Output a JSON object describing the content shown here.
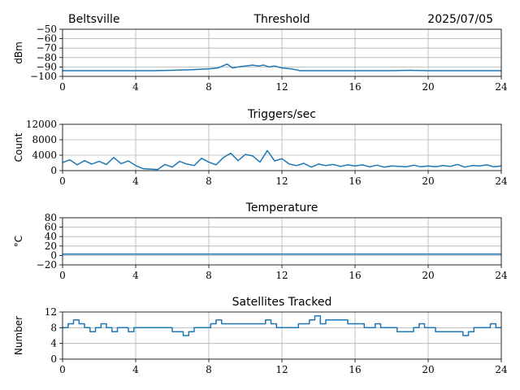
{
  "header": {
    "station": "Beltsville",
    "date": "2025/07/05"
  },
  "chart_data": [
    {
      "type": "line",
      "title": "Threshold",
      "ylabel": "dBm",
      "xlim": [
        0,
        24
      ],
      "ylim": [
        -100,
        -50
      ],
      "xticks": [
        0,
        4,
        8,
        12,
        16,
        20,
        24
      ],
      "yticks": [
        -100,
        -90,
        -80,
        -70,
        -60,
        -50
      ],
      "grid": true,
      "series": [
        {
          "x": [
            0,
            1,
            2,
            3,
            4,
            5,
            6,
            7,
            8,
            8.5,
            9,
            9.3,
            9.6,
            10,
            10.4,
            10.7,
            11,
            11.3,
            11.6,
            12,
            12.5,
            13,
            14,
            16,
            18,
            19,
            20,
            22,
            24
          ],
          "values": [
            -94,
            -94,
            -94,
            -94,
            -94,
            -94,
            -93.5,
            -93,
            -92,
            -91,
            -87,
            -91,
            -90,
            -89,
            -88,
            -89,
            -88,
            -90,
            -89,
            -91,
            -92,
            -94,
            -94,
            -94,
            -94,
            -93.5,
            -94,
            -94,
            -94
          ]
        }
      ]
    },
    {
      "type": "line",
      "title": "Triggers/sec",
      "ylabel": "Count",
      "xlim": [
        0,
        24
      ],
      "ylim": [
        0,
        12000
      ],
      "xticks": [
        0,
        4,
        8,
        12,
        16,
        20,
        24
      ],
      "yticks": [
        0,
        4000,
        8000,
        12000
      ],
      "grid": true,
      "series": [
        {
          "x": [
            0,
            0.4,
            0.8,
            1.2,
            1.6,
            2,
            2.4,
            2.8,
            3.2,
            3.6,
            4,
            4.4,
            4.8,
            5.2,
            5.6,
            6,
            6.4,
            6.8,
            7.2,
            7.6,
            8,
            8.4,
            8.8,
            9.2,
            9.6,
            10,
            10.4,
            10.8,
            11.2,
            11.6,
            12,
            12.4,
            12.8,
            13.2,
            13.6,
            14,
            14.4,
            14.8,
            15.2,
            15.6,
            16,
            16.4,
            16.8,
            17.2,
            17.6,
            18,
            18.4,
            18.8,
            19.2,
            19.6,
            20,
            20.4,
            20.8,
            21.2,
            21.6,
            22,
            22.4,
            22.8,
            23.2,
            23.6,
            24
          ],
          "values": [
            2100,
            2800,
            1500,
            2600,
            1700,
            2400,
            1600,
            3400,
            1800,
            2500,
            1300,
            500,
            400,
            300,
            1600,
            900,
            2400,
            1700,
            1300,
            3200,
            2200,
            1500,
            3400,
            4500,
            2600,
            4200,
            3800,
            2200,
            5200,
            2500,
            3100,
            1700,
            1300,
            1900,
            900,
            1700,
            1300,
            1600,
            1100,
            1500,
            1200,
            1500,
            1000,
            1400,
            900,
            1200,
            1100,
            1000,
            1400,
            1000,
            1200,
            1000,
            1300,
            1100,
            1600,
            900,
            1300,
            1200,
            1500,
            1000,
            1200
          ]
        }
      ]
    },
    {
      "type": "line",
      "title": "Temperature",
      "ylabel": "°C",
      "xlim": [
        0,
        24
      ],
      "ylim": [
        -20,
        80
      ],
      "xticks": [
        0,
        4,
        8,
        12,
        16,
        20,
        24
      ],
      "yticks": [
        -20,
        0,
        20,
        40,
        60,
        80
      ],
      "grid": true,
      "series": [
        {
          "x": [
            0,
            4,
            8,
            12,
            16,
            20,
            24
          ],
          "values": [
            3,
            3,
            3,
            3,
            3,
            3,
            3
          ]
        }
      ]
    },
    {
      "type": "line",
      "title": "Satellites Tracked",
      "ylabel": "Number",
      "xlim": [
        0,
        24
      ],
      "ylim": [
        0,
        12
      ],
      "xticks": [
        0,
        4,
        8,
        12,
        16,
        20,
        24
      ],
      "yticks": [
        0,
        4,
        8,
        12
      ],
      "grid": true,
      "series": [
        {
          "step": true,
          "x": [
            0,
            0.3,
            0.6,
            0.9,
            1.2,
            1.5,
            1.8,
            2.1,
            2.4,
            2.7,
            3.0,
            3.3,
            3.6,
            3.9,
            4.2,
            4.5,
            4.8,
            5.1,
            5.4,
            5.7,
            6.0,
            6.3,
            6.6,
            6.9,
            7.2,
            7.5,
            7.8,
            8.1,
            8.4,
            8.7,
            9.0,
            9.3,
            9.6,
            9.9,
            10.2,
            10.5,
            10.8,
            11.1,
            11.4,
            11.7,
            12.0,
            12.3,
            12.6,
            12.9,
            13.2,
            13.5,
            13.8,
            14.1,
            14.4,
            14.7,
            15.0,
            15.3,
            15.6,
            15.9,
            16.2,
            16.5,
            16.8,
            17.1,
            17.4,
            17.7,
            18.0,
            18.3,
            18.6,
            18.9,
            19.2,
            19.5,
            19.8,
            20.1,
            20.4,
            20.7,
            21.0,
            21.3,
            21.6,
            21.9,
            22.2,
            22.5,
            22.8,
            23.1,
            23.4,
            23.7,
            24.0
          ],
          "values": [
            8,
            9,
            10,
            9,
            8,
            7,
            8,
            9,
            8,
            7,
            8,
            8,
            7,
            8,
            8,
            8,
            8,
            8,
            8,
            8,
            7,
            7,
            6,
            7,
            8,
            8,
            8,
            9,
            10,
            9,
            9,
            9,
            9,
            9,
            9,
            9,
            9,
            10,
            9,
            8,
            8,
            8,
            8,
            9,
            9,
            10,
            11,
            9,
            10,
            10,
            10,
            10,
            9,
            9,
            9,
            8,
            8,
            9,
            8,
            8,
            8,
            7,
            7,
            7,
            8,
            9,
            8,
            8,
            7,
            7,
            7,
            7,
            7,
            6,
            7,
            8,
            8,
            8,
            9,
            8,
            8
          ]
        }
      ]
    }
  ]
}
